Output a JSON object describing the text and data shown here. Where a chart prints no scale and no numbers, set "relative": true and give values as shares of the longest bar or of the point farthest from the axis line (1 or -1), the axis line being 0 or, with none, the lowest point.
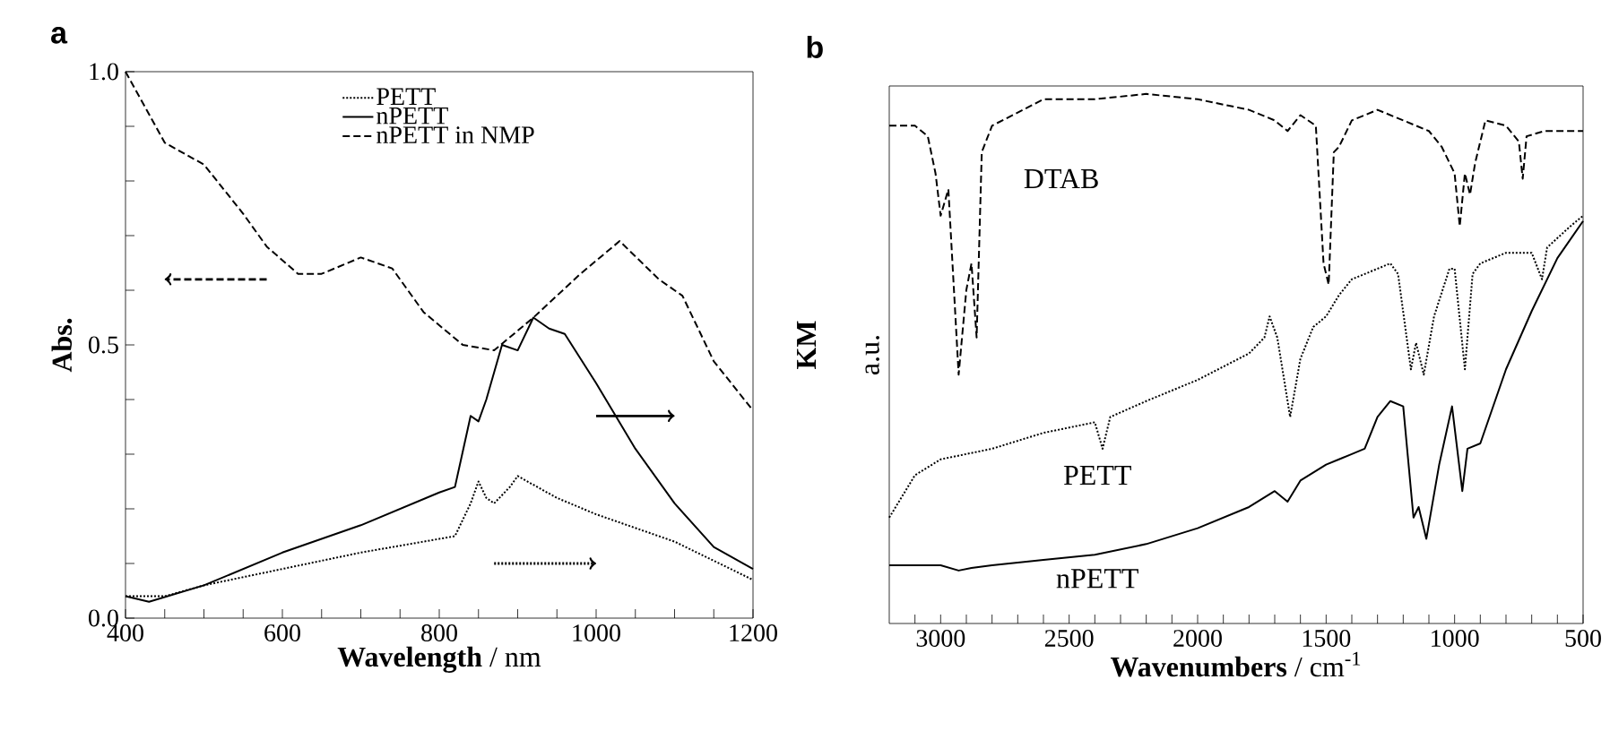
{
  "chart_data": [
    {
      "type": "line",
      "title": "a",
      "xlabel": "**Wavelength** / nm",
      "ylabel": "Abs.",
      "y2label": "KM",
      "xlim": [
        400,
        1200
      ],
      "xticks": [
        400,
        {
          "value": 450,
          "label": null
        },
        {
          "value": 500,
          "label": null
        },
        {
          "value": 550,
          "label": null
        },
        600,
        {
          "value": 650,
          "label": null
        },
        {
          "value": 700,
          "label": null
        },
        {
          "value": 750,
          "label": null
        },
        800,
        {
          "value": 850,
          "label": null
        },
        {
          "value": 900,
          "label": null
        },
        {
          "value": 950,
          "label": null
        },
        1000,
        {
          "value": 1050,
          "label": null
        },
        {
          "value": 1100,
          "label": null
        },
        {
          "value": 1150,
          "label": null
        },
        1200
      ],
      "ylim": [
        0,
        1
      ],
      "yticks": [
        {
          "value": 0,
          "label": "0.0"
        },
        {
          "value": 0.1,
          "label": null
        },
        {
          "value": 0.2,
          "label": null
        },
        {
          "value": 0.3,
          "label": null
        },
        {
          "value": 0.4,
          "label": null
        },
        {
          "value": 0.5,
          "label": "0.5"
        },
        {
          "value": 0.6,
          "label": null
        },
        {
          "value": 0.7,
          "label": null
        },
        {
          "value": 0.8,
          "label": null
        },
        {
          "value": 0.9,
          "label": null
        },
        {
          "value": 1,
          "label": "1.0"
        }
      ],
      "legend": "top",
      "grid": false,
      "series": [
        {
          "name": "PETT",
          "color": "#000000",
          "line_style": "dotted",
          "x": [
            400,
            450,
            500,
            600,
            700,
            800,
            820,
            840,
            850,
            860,
            870,
            890,
            900,
            950,
            1000,
            1100,
            1200
          ],
          "values": [
            0.04,
            0.04,
            0.06,
            0.09,
            0.12,
            0.145,
            0.15,
            0.21,
            0.25,
            0.22,
            0.21,
            0.24,
            0.26,
            0.22,
            0.19,
            0.14,
            0.07
          ]
        },
        {
          "name": "nPETT",
          "color": "#000000",
          "line_style": "solid",
          "x": [
            400,
            430,
            500,
            600,
            700,
            800,
            820,
            840,
            850,
            860,
            880,
            900,
            920,
            940,
            960,
            1000,
            1050,
            1100,
            1150,
            1200
          ],
          "values": [
            0.04,
            0.03,
            0.06,
            0.12,
            0.17,
            0.23,
            0.24,
            0.37,
            0.36,
            0.4,
            0.5,
            0.49,
            0.55,
            0.53,
            0.52,
            0.43,
            0.31,
            0.21,
            0.13,
            0.09
          ]
        },
        {
          "name": "nPETT in NMP",
          "color": "#000000",
          "line_style": "dashed",
          "x": [
            400,
            450,
            500,
            550,
            580,
            620,
            650,
            700,
            740,
            780,
            830,
            870,
            920,
            980,
            1030,
            1080,
            1110,
            1150,
            1200
          ],
          "values": [
            1.0,
            0.87,
            0.83,
            0.74,
            0.68,
            0.63,
            0.63,
            0.66,
            0.64,
            0.56,
            0.5,
            0.49,
            0.55,
            0.63,
            0.69,
            0.62,
            0.59,
            0.47,
            0.38
          ]
        }
      ]
    },
    {
      "type": "line",
      "title": "b",
      "xlabel": "**Wavenumbers** / cm$^{-1}$",
      "ylabel": "a.u.",
      "relative": true,
      "xlim": [
        3200,
        500
      ],
      "xticks": [
        {
          "value": 3100,
          "label": null
        },
        3000,
        {
          "value": 2900,
          "label": null
        },
        {
          "value": 2800,
          "label": null
        },
        {
          "value": 2700,
          "label": null
        },
        {
          "value": 2600,
          "label": null
        },
        2500,
        {
          "value": 2400,
          "label": null
        },
        {
          "value": 2300,
          "label": null
        },
        {
          "value": 2200,
          "label": null
        },
        {
          "value": 2100,
          "label": null
        },
        2000,
        {
          "value": 1900,
          "label": null
        },
        {
          "value": 1800,
          "label": null
        },
        {
          "value": 1700,
          "label": null
        },
        {
          "value": 1600,
          "label": null
        },
        1500,
        {
          "value": 1400,
          "label": null
        },
        {
          "value": 1300,
          "label": null
        },
        {
          "value": 1200,
          "label": null
        },
        {
          "value": 1100,
          "label": null
        },
        1000,
        {
          "value": 900,
          "label": null
        },
        {
          "value": 800,
          "label": null
        },
        {
          "value": 700,
          "label": null
        },
        {
          "value": 600,
          "label": null
        },
        500
      ],
      "legend": false,
      "grid": false,
      "series": [
        {
          "name": "DTAB",
          "color": "#000000",
          "line_style": "dashed",
          "x": [
            3200,
            3100,
            3050,
            3020,
            3000,
            2970,
            2930,
            2900,
            2880,
            2860,
            2840,
            2800,
            2600,
            2400,
            2200,
            2000,
            1800,
            1700,
            1650,
            1600,
            1540,
            1510,
            1490,
            1470,
            1450,
            1400,
            1300,
            1200,
            1100,
            1050,
            1000,
            980,
            960,
            940,
            920,
            880,
            800,
            750,
            735,
            720,
            650,
            550,
            500
          ],
          "values": [
            0.94,
            0.94,
            0.92,
            0.85,
            0.77,
            0.82,
            0.47,
            0.63,
            0.68,
            0.54,
            0.89,
            0.94,
            0.99,
            0.99,
            1.0,
            0.99,
            0.97,
            0.95,
            0.93,
            0.96,
            0.94,
            0.68,
            0.64,
            0.89,
            0.9,
            0.95,
            0.97,
            0.95,
            0.93,
            0.9,
            0.85,
            0.75,
            0.85,
            0.81,
            0.87,
            0.95,
            0.94,
            0.91,
            0.84,
            0.92,
            0.93,
            0.93,
            0.93
          ]
        },
        {
          "name": "PETT",
          "color": "#000000",
          "line_style": "dotted",
          "x": [
            3200,
            3100,
            3000,
            2800,
            2600,
            2400,
            2370,
            2340,
            2200,
            2000,
            1800,
            1740,
            1720,
            1690,
            1640,
            1600,
            1550,
            1500,
            1450,
            1400,
            1300,
            1250,
            1220,
            1170,
            1150,
            1120,
            1080,
            1020,
            1000,
            960,
            930,
            900,
            800,
            700,
            660,
            640,
            550,
            500
          ],
          "values": [
            0.2,
            0.28,
            0.31,
            0.33,
            0.36,
            0.38,
            0.33,
            0.39,
            0.42,
            0.46,
            0.51,
            0.54,
            0.58,
            0.54,
            0.39,
            0.5,
            0.56,
            0.58,
            0.62,
            0.65,
            0.67,
            0.68,
            0.66,
            0.48,
            0.53,
            0.47,
            0.58,
            0.67,
            0.67,
            0.48,
            0.66,
            0.68,
            0.7,
            0.7,
            0.65,
            0.71,
            0.75,
            0.77
          ]
        },
        {
          "name": "nPETT",
          "color": "#000000",
          "line_style": "solid",
          "x": [
            3200,
            3000,
            2930,
            2880,
            2800,
            2600,
            2400,
            2200,
            2000,
            1800,
            1700,
            1650,
            1600,
            1500,
            1450,
            1400,
            1350,
            1300,
            1250,
            1200,
            1160,
            1140,
            1110,
            1060,
            1010,
            970,
            950,
            900,
            800,
            700,
            600,
            500
          ],
          "values": [
            0.11,
            0.11,
            0.1,
            0.105,
            0.11,
            0.12,
            0.13,
            0.15,
            0.18,
            0.22,
            0.25,
            0.23,
            0.27,
            0.3,
            0.31,
            0.32,
            0.33,
            0.39,
            0.42,
            0.41,
            0.2,
            0.22,
            0.16,
            0.3,
            0.41,
            0.25,
            0.33,
            0.34,
            0.48,
            0.59,
            0.69,
            0.76
          ]
        }
      ]
    }
  ]
}
